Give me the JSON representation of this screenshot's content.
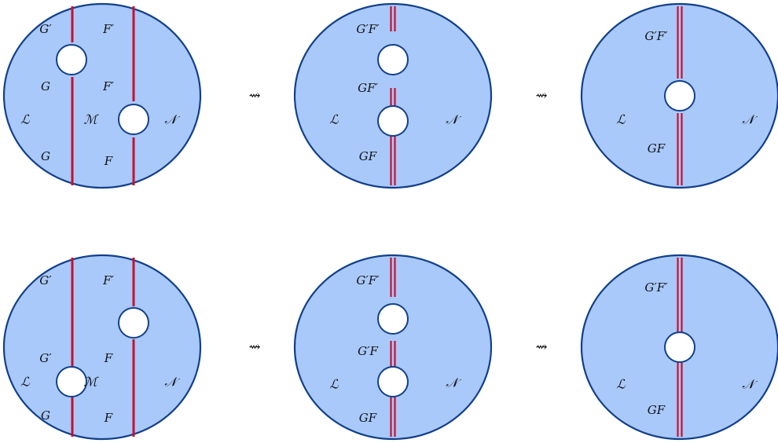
{
  "colors": {
    "disk_fill": "#a9c9fa",
    "disk_stroke": "#12408a",
    "line": "#c8102e",
    "hole_fill": "#ffffff",
    "arrow": "#333333"
  },
  "arrow_symbol": "⇝",
  "rows": [
    {
      "name": "top-row",
      "panels": [
        {
          "name": "separate-lines",
          "labels": {
            "g-prime-top": "G′",
            "f-prime-top": "F′",
            "g-middle": "G",
            "f-prime-middle": "F′",
            "l-region": "ℒ",
            "m-region": "ℳ",
            "n-region": "𝒩",
            "g-bottom": "G",
            "f-bottom": "F"
          }
        },
        {
          "name": "merged-two-holes",
          "labels": {
            "gf-prime-prime-top": "G′F′",
            "gf-prime-middle": "GF′",
            "l-region": "ℒ",
            "n-region": "𝒩",
            "gf-bottom": "GF"
          }
        },
        {
          "name": "merged-one-hole",
          "labels": {
            "gf-prime-prime-top": "G′F′",
            "l-region": "ℒ",
            "n-region": "𝒩",
            "gf-bottom": "GF"
          }
        }
      ]
    },
    {
      "name": "bottom-row",
      "panels": [
        {
          "name": "separate-lines",
          "labels": {
            "g-prime-top": "G′",
            "f-prime-top": "F′",
            "g-prime-middle": "G′",
            "f-middle": "F",
            "l-region": "ℒ",
            "m-region": "ℳ",
            "n-region": "𝒩",
            "g-bottom": "G",
            "f-bottom": "F"
          }
        },
        {
          "name": "merged-two-holes",
          "labels": {
            "gf-prime-prime-top": "G′F′",
            "g-prime-f-middle": "G′F",
            "l-region": "ℒ",
            "n-region": "𝒩",
            "gf-bottom": "GF"
          }
        },
        {
          "name": "merged-one-hole",
          "labels": {
            "gf-prime-prime-top": "G′F′",
            "l-region": "ℒ",
            "n-region": "𝒩",
            "gf-bottom": "GF"
          }
        }
      ]
    }
  ]
}
